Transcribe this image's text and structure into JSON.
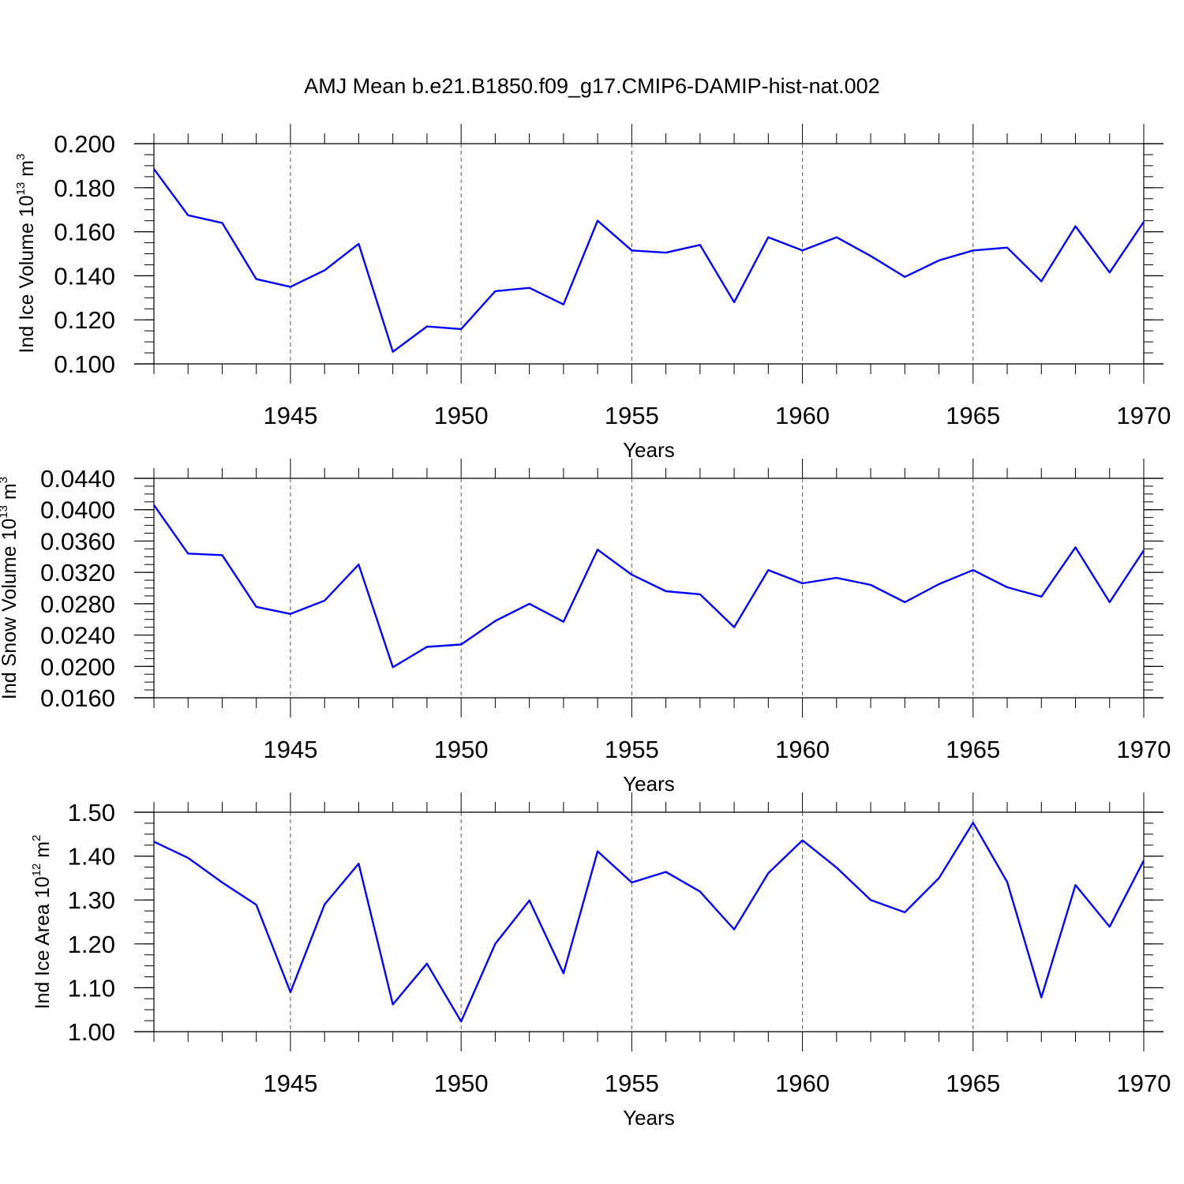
{
  "title": "AMJ Mean b.e21.B1850.f09_g17.CMIP6-DAMIP-hist-nat.002",
  "chart_data": [
    {
      "type": "line",
      "title": "AMJ Mean b.e21.B1850.f09_g17.CMIP6-DAMIP-hist-nat.002",
      "ylabel": "Ind Ice Volume 10",
      "ylabel_exp": "13",
      "ylabel_unit": "m",
      "ylabel_unit_exp": "3",
      "xlabel": "Years",
      "xlim": [
        1941,
        1970
      ],
      "ylim": [
        0.1,
        0.2
      ],
      "yticks": [
        "0.200",
        "0.180",
        "0.160",
        "0.140",
        "0.120",
        "0.100"
      ],
      "yticks_values": [
        0.2,
        0.18,
        0.16,
        0.14,
        0.12,
        0.1
      ],
      "yminor_step": 0.005,
      "xticks": [
        "1945",
        "1950",
        "1955",
        "1960",
        "1965",
        "1970"
      ],
      "xticks_values": [
        1945,
        1950,
        1955,
        1960,
        1965,
        1970
      ],
      "series": [
        {
          "name": "Ind Ice Volume",
          "color": "#0000ff",
          "x": [
            1941,
            1942,
            1943,
            1944,
            1945,
            1946,
            1947,
            1948,
            1949,
            1950,
            1951,
            1952,
            1953,
            1954,
            1955,
            1956,
            1957,
            1958,
            1959,
            1960,
            1961,
            1962,
            1963,
            1964,
            1965,
            1966,
            1967,
            1968,
            1969,
            1970
          ],
          "values": [
            0.1885,
            0.1675,
            0.164,
            0.1385,
            0.135,
            0.1425,
            0.1545,
            0.1055,
            0.117,
            0.1158,
            0.133,
            0.1345,
            0.127,
            0.165,
            0.1515,
            0.1505,
            0.154,
            0.128,
            0.1575,
            0.1515,
            0.1575,
            0.149,
            0.1395,
            0.147,
            0.1515,
            0.1528,
            0.1375,
            0.1625,
            0.1415,
            0.1645
          ]
        }
      ]
    },
    {
      "type": "line",
      "ylabel": "Ind Snow Volume 10",
      "ylabel_exp": "13",
      "ylabel_unit": "m",
      "ylabel_unit_exp": "3",
      "xlabel": "Years",
      "xlim": [
        1941,
        1970
      ],
      "ylim": [
        0.016,
        0.044
      ],
      "yticks": [
        "0.0440",
        "0.0400",
        "0.0360",
        "0.0320",
        "0.0280",
        "0.0240",
        "0.0200",
        "0.0160"
      ],
      "yticks_values": [
        0.044,
        0.04,
        0.036,
        0.032,
        0.028,
        0.024,
        0.02,
        0.016
      ],
      "yminor_step": 0.001,
      "xticks": [
        "1945",
        "1950",
        "1955",
        "1960",
        "1965",
        "1970"
      ],
      "xticks_values": [
        1945,
        1950,
        1955,
        1960,
        1965,
        1970
      ],
      "series": [
        {
          "name": "Ind Snow Volume",
          "color": "#0000ff",
          "x": [
            1941,
            1942,
            1943,
            1944,
            1945,
            1946,
            1947,
            1948,
            1949,
            1950,
            1951,
            1952,
            1953,
            1954,
            1955,
            1956,
            1957,
            1958,
            1959,
            1960,
            1961,
            1962,
            1963,
            1964,
            1965,
            1966,
            1967,
            1968,
            1969,
            1970
          ],
          "values": [
            0.0406,
            0.0344,
            0.0342,
            0.0276,
            0.0267,
            0.0284,
            0.033,
            0.0199,
            0.0225,
            0.0228,
            0.0258,
            0.028,
            0.0257,
            0.0349,
            0.0317,
            0.0296,
            0.0292,
            0.025,
            0.0323,
            0.0306,
            0.0313,
            0.0304,
            0.0282,
            0.0305,
            0.0323,
            0.0301,
            0.0289,
            0.0352,
            0.0282,
            0.0348
          ]
        }
      ]
    },
    {
      "type": "line",
      "ylabel": "Ind Ice Area 10",
      "ylabel_exp": "12",
      "ylabel_unit": "m",
      "ylabel_unit_exp": "2",
      "xlabel": "Years",
      "xlim": [
        1941,
        1970
      ],
      "ylim": [
        1.0,
        1.5
      ],
      "yticks": [
        "1.50",
        "1.40",
        "1.30",
        "1.20",
        "1.10",
        "1.00"
      ],
      "yticks_values": [
        1.5,
        1.4,
        1.3,
        1.2,
        1.1,
        1.0
      ],
      "yminor_step": 0.025,
      "xticks": [
        "1945",
        "1950",
        "1955",
        "1960",
        "1965",
        "1970"
      ],
      "xticks_values": [
        1945,
        1950,
        1955,
        1960,
        1965,
        1970
      ],
      "series": [
        {
          "name": "Ind Ice Area",
          "color": "#0000ff",
          "x": [
            1941,
            1942,
            1943,
            1944,
            1945,
            1946,
            1947,
            1948,
            1949,
            1950,
            1951,
            1952,
            1953,
            1954,
            1955,
            1956,
            1957,
            1958,
            1959,
            1960,
            1961,
            1962,
            1963,
            1964,
            1965,
            1966,
            1967,
            1968,
            1969,
            1970
          ],
          "values": [
            1.433,
            1.396,
            1.34,
            1.289,
            1.09,
            1.29,
            1.383,
            1.062,
            1.155,
            1.023,
            1.2,
            1.299,
            1.133,
            1.411,
            1.34,
            1.364,
            1.319,
            1.233,
            1.361,
            1.436,
            1.374,
            1.3,
            1.272,
            1.35,
            1.476,
            1.341,
            1.078,
            1.334,
            1.239,
            1.39
          ]
        }
      ]
    }
  ]
}
